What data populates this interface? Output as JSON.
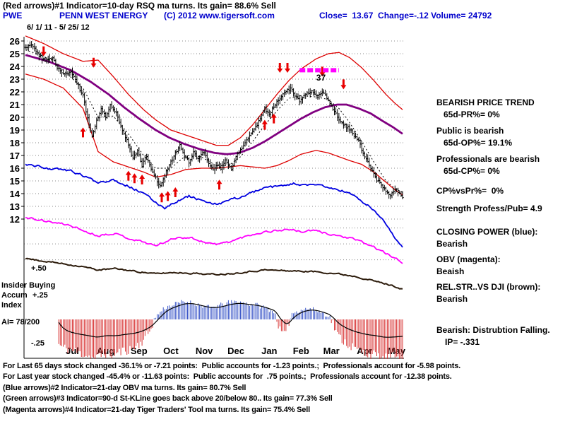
{
  "header": {
    "line1": "(Red arrows)#1 Indicator=10-day RSQ ma turns. Its gain= 88.6% Sell",
    "ticker": "PWE",
    "company": "PENN WEST ENERGY",
    "copyright": "(C) 2012 www.tigersoft.com",
    "quote": "Close=  13.67  Change=-.12 Volume= 24792",
    "date_range": "6/ 1/ 11 - 5/ 25/ 12"
  },
  "left_labels": {
    "plus50": "+.50",
    "insider": "Insider Buying",
    "accum": "Accum",
    "plus25": "+.25",
    "index": "Index",
    "ai": "AI= 78/200",
    "minus25": "-.25"
  },
  "right_panel": {
    "lines": [
      "BEARISH PRICE TREND",
      "65d-PR%= 0%",
      "Public is bearish",
      "65d-OP%= 19.1%",
      "Professionals are bearish",
      "65d-CP%= 0%",
      "CP%vsPr%=  0%",
      "Strength Profess/Pub= 4.9",
      "CLOSING POWER (blue):",
      "Bearish",
      "OBV (magenta):",
      "Beaish",
      "REL.STR..VS DJI (brown):",
      "Bearish",
      "Bearish: Distrubtion Falling.",
      "IP= -.331"
    ]
  },
  "footer": {
    "lines": [
      "For Last 65 days stock changed -36.1% or -7.21 points:  Public accounts for -1.23 points.;  Professionals account for -5.98 points.",
      "For Last year stock changed -45.4% or -11.63 points:  Public accounts for  .75 points.;  Professionals account for -12.38 points.",
      "(Blue arrows)#2 Indicator=21-day OBV ma turns. Its gain= 80.7% Sell",
      "(Green arrows)#3 Indicator=90-d St-KLine goes back above 20/below 80.. Its gain= 77.3% Sell",
      "(Magenta arrows)#4 Indicator=21-day Tiger Traders' Tool ma turns. Its gain= 75.4% Sell"
    ]
  },
  "chart_data": {
    "type": "candlestick",
    "symbol": "PWE",
    "title": "PENN WEST ENERGY 6/1/11 - 5/25/12",
    "close": 13.67,
    "change": -0.12,
    "volume": 24792,
    "days": 250,
    "ylim": [
      12,
      26
    ],
    "yticks": [
      26,
      25,
      24,
      23,
      22,
      21,
      20,
      19,
      18,
      17,
      16,
      15,
      14,
      13,
      12
    ],
    "extra_gridlines": [
      11.3,
      10.05,
      8.8
    ],
    "months": [
      "Jul",
      "Aug",
      "Sep",
      "Oct",
      "Nov",
      "Dec",
      "Jan",
      "Feb",
      "Mar",
      "Apr",
      "May"
    ],
    "month_starts": [
      21,
      43,
      65,
      86,
      108,
      129,
      151,
      172,
      192,
      214,
      235
    ],
    "price_close": [
      [
        0,
        25.4
      ],
      [
        4,
        25.8
      ],
      [
        8,
        25.0
      ],
      [
        13,
        24.4
      ],
      [
        18,
        24.7
      ],
      [
        21,
        23.9
      ],
      [
        26,
        23.3
      ],
      [
        30,
        23.6
      ],
      [
        34,
        22.7
      ],
      [
        38,
        21.7
      ],
      [
        41,
        19.9
      ],
      [
        44,
        18.4
      ],
      [
        47,
        19.7
      ],
      [
        50,
        20.7
      ],
      [
        53,
        20.0
      ],
      [
        56,
        21.0
      ],
      [
        60,
        20.3
      ],
      [
        63,
        19.3
      ],
      [
        65,
        18.7
      ],
      [
        68,
        17.9
      ],
      [
        71,
        16.7
      ],
      [
        74,
        17.4
      ],
      [
        77,
        16.2
      ],
      [
        80,
        17.0
      ],
      [
        83,
        16.0
      ],
      [
        86,
        15.2
      ],
      [
        89,
        14.6
      ],
      [
        92,
        15.4
      ],
      [
        95,
        16.3
      ],
      [
        99,
        17.2
      ],
      [
        102,
        17.8
      ],
      [
        105,
        16.9
      ],
      [
        108,
        16.5
      ],
      [
        111,
        17.2
      ],
      [
        114,
        16.7
      ],
      [
        118,
        17.3
      ],
      [
        121,
        16.4
      ],
      [
        124,
        15.8
      ],
      [
        127,
        16.3
      ],
      [
        129,
        15.9
      ],
      [
        132,
        16.6
      ],
      [
        136,
        16.0
      ],
      [
        139,
        16.9
      ],
      [
        143,
        17.6
      ],
      [
        147,
        18.3
      ],
      [
        151,
        19.0
      ],
      [
        155,
        19.9
      ],
      [
        158,
        20.7
      ],
      [
        161,
        20.2
      ],
      [
        164,
        20.9
      ],
      [
        168,
        21.5
      ],
      [
        171,
        22.0
      ],
      [
        175,
        22.3
      ],
      [
        178,
        21.7
      ],
      [
        181,
        21.3
      ],
      [
        185,
        21.8
      ],
      [
        189,
        22.1
      ],
      [
        192,
        21.6
      ],
      [
        196,
        22.0
      ],
      [
        200,
        21.3
      ],
      [
        203,
        20.6
      ],
      [
        207,
        19.9
      ],
      [
        210,
        19.4
      ],
      [
        214,
        19.1
      ],
      [
        217,
        18.6
      ],
      [
        220,
        18.1
      ],
      [
        223,
        17.2
      ],
      [
        226,
        16.5
      ],
      [
        229,
        15.7
      ],
      [
        232,
        15.1
      ],
      [
        235,
        14.6
      ],
      [
        238,
        14.2
      ],
      [
        241,
        13.9
      ],
      [
        244,
        14.4
      ],
      [
        247,
        14.0
      ],
      [
        249,
        13.7
      ]
    ],
    "upper_band": [
      [
        0,
        26.4
      ],
      [
        12,
        25.8
      ],
      [
        25,
        25.0
      ],
      [
        38,
        24.4
      ],
      [
        48,
        24.5
      ],
      [
        58,
        23.2
      ],
      [
        68,
        21.8
      ],
      [
        78,
        20.6
      ],
      [
        86,
        19.8
      ],
      [
        96,
        19.0
      ],
      [
        106,
        18.6
      ],
      [
        116,
        18.2
      ],
      [
        126,
        17.8
      ],
      [
        134,
        17.8
      ],
      [
        142,
        18.4
      ],
      [
        150,
        19.4
      ],
      [
        158,
        20.6
      ],
      [
        166,
        21.8
      ],
      [
        174,
        22.9
      ],
      [
        182,
        23.8
      ],
      [
        192,
        24.6
      ],
      [
        200,
        25.0
      ],
      [
        207,
        25.1
      ],
      [
        214,
        24.7
      ],
      [
        222,
        23.9
      ],
      [
        230,
        22.9
      ],
      [
        238,
        21.8
      ],
      [
        244,
        21.1
      ],
      [
        249,
        20.6
      ]
    ],
    "lower_band": [
      [
        0,
        23.4
      ],
      [
        12,
        23.0
      ],
      [
        25,
        22.3
      ],
      [
        38,
        20.7
      ],
      [
        48,
        17.3
      ],
      [
        58,
        16.5
      ],
      [
        68,
        16.1
      ],
      [
        78,
        15.7
      ],
      [
        86,
        15.3
      ],
      [
        96,
        15.5
      ],
      [
        106,
        15.9
      ],
      [
        116,
        16.0
      ],
      [
        126,
        16.0
      ],
      [
        134,
        16.1
      ],
      [
        142,
        16.2
      ],
      [
        150,
        16.1
      ],
      [
        158,
        16.0
      ],
      [
        166,
        16.2
      ],
      [
        174,
        16.6
      ],
      [
        182,
        17.1
      ],
      [
        192,
        17.4
      ],
      [
        200,
        17.2
      ],
      [
        207,
        16.9
      ],
      [
        214,
        16.6
      ],
      [
        222,
        16.3
      ],
      [
        230,
        15.7
      ],
      [
        238,
        14.9
      ],
      [
        244,
        14.3
      ],
      [
        249,
        13.9
      ]
    ],
    "mid_band": [
      [
        0,
        24.9
      ],
      [
        15,
        24.4
      ],
      [
        30,
        23.7
      ],
      [
        43,
        22.8
      ],
      [
        55,
        21.8
      ],
      [
        65,
        20.8
      ],
      [
        75,
        19.9
      ],
      [
        86,
        19.0
      ],
      [
        95,
        18.4
      ],
      [
        105,
        17.9
      ],
      [
        115,
        17.5
      ],
      [
        125,
        17.2
      ],
      [
        133,
        17.1
      ],
      [
        141,
        17.2
      ],
      [
        150,
        17.6
      ],
      [
        158,
        18.1
      ],
      [
        166,
        18.7
      ],
      [
        174,
        19.3
      ],
      [
        182,
        19.9
      ],
      [
        190,
        20.4
      ],
      [
        198,
        20.8
      ],
      [
        206,
        21.0
      ],
      [
        212,
        21.0
      ],
      [
        220,
        20.7
      ],
      [
        228,
        20.3
      ],
      [
        236,
        19.7
      ],
      [
        243,
        19.2
      ],
      [
        249,
        18.7
      ]
    ],
    "dotted_ma": [
      [
        0,
        25.3
      ],
      [
        12,
        24.8
      ],
      [
        25,
        23.7
      ],
      [
        38,
        22.3
      ],
      [
        48,
        20.0
      ],
      [
        58,
        20.1
      ],
      [
        68,
        18.7
      ],
      [
        78,
        17.0
      ],
      [
        86,
        16.0
      ],
      [
        96,
        16.0
      ],
      [
        106,
        17.0
      ],
      [
        116,
        16.9
      ],
      [
        126,
        16.2
      ],
      [
        134,
        16.2
      ],
      [
        142,
        16.9
      ],
      [
        150,
        18.1
      ],
      [
        158,
        19.4
      ],
      [
        166,
        20.5
      ],
      [
        174,
        21.5
      ],
      [
        182,
        21.7
      ],
      [
        192,
        21.6
      ],
      [
        200,
        21.4
      ],
      [
        207,
        20.7
      ],
      [
        214,
        19.6
      ],
      [
        222,
        18.1
      ],
      [
        230,
        16.5
      ],
      [
        238,
        15.0
      ],
      [
        244,
        14.4
      ],
      [
        249,
        14.1
      ]
    ],
    "closing_power": [
      [
        0,
        16.3
      ],
      [
        10,
        16.1
      ],
      [
        20,
        15.9
      ],
      [
        30,
        15.8
      ],
      [
        40,
        15.3
      ],
      [
        48,
        14.9
      ],
      [
        58,
        15.1
      ],
      [
        68,
        14.6
      ],
      [
        78,
        14.0
      ],
      [
        86,
        13.3
      ],
      [
        92,
        12.9
      ],
      [
        100,
        13.4
      ],
      [
        108,
        13.8
      ],
      [
        116,
        13.5
      ],
      [
        124,
        13.1
      ],
      [
        130,
        13.3
      ],
      [
        138,
        13.6
      ],
      [
        146,
        13.9
      ],
      [
        154,
        14.3
      ],
      [
        162,
        14.5
      ],
      [
        170,
        14.6
      ],
      [
        178,
        14.8
      ],
      [
        186,
        14.6
      ],
      [
        194,
        14.7
      ],
      [
        202,
        14.4
      ],
      [
        210,
        14.2
      ],
      [
        216,
        13.9
      ],
      [
        222,
        13.4
      ],
      [
        228,
        12.9
      ],
      [
        234,
        12.2
      ],
      [
        240,
        11.3
      ],
      [
        245,
        10.4
      ],
      [
        249,
        9.8
      ]
    ],
    "obv": [
      [
        0,
        12.1
      ],
      [
        10,
        11.9
      ],
      [
        20,
        11.7
      ],
      [
        30,
        11.5
      ],
      [
        40,
        11.0
      ],
      [
        48,
        10.7
      ],
      [
        58,
        10.9
      ],
      [
        68,
        10.5
      ],
      [
        78,
        10.2
      ],
      [
        86,
        9.9
      ],
      [
        94,
        10.3
      ],
      [
        102,
        10.6
      ],
      [
        110,
        10.5
      ],
      [
        118,
        10.2
      ],
      [
        126,
        10.0
      ],
      [
        134,
        10.2
      ],
      [
        142,
        10.5
      ],
      [
        150,
        10.8
      ],
      [
        158,
        11.0
      ],
      [
        166,
        11.1
      ],
      [
        174,
        11.2
      ],
      [
        182,
        11.0
      ],
      [
        190,
        11.1
      ],
      [
        198,
        10.9
      ],
      [
        206,
        10.7
      ],
      [
        214,
        10.5
      ],
      [
        222,
        10.2
      ],
      [
        230,
        9.8
      ],
      [
        238,
        9.3
      ],
      [
        244,
        8.9
      ],
      [
        249,
        8.6
      ]
    ],
    "rel_strength": [
      [
        0,
        8.9
      ],
      [
        12,
        8.7
      ],
      [
        24,
        8.5
      ],
      [
        36,
        8.3
      ],
      [
        48,
        8.0
      ],
      [
        60,
        8.1
      ],
      [
        72,
        7.9
      ],
      [
        86,
        7.7
      ],
      [
        98,
        7.8
      ],
      [
        110,
        7.75
      ],
      [
        122,
        7.65
      ],
      [
        134,
        7.7
      ],
      [
        146,
        7.85
      ],
      [
        158,
        8.0
      ],
      [
        170,
        7.95
      ],
      [
        182,
        7.9
      ],
      [
        194,
        7.85
      ],
      [
        206,
        7.7
      ],
      [
        218,
        7.5
      ],
      [
        228,
        7.2
      ],
      [
        238,
        6.9
      ],
      [
        244,
        6.7
      ],
      [
        249,
        6.5
      ]
    ],
    "ai_index": [
      [
        0,
        -0.3
      ],
      [
        8,
        -0.5
      ],
      [
        16,
        -0.4
      ],
      [
        24,
        -0.7
      ],
      [
        32,
        -0.8
      ],
      [
        40,
        -0.9
      ],
      [
        46,
        -1.0
      ],
      [
        52,
        -0.85
      ],
      [
        58,
        -0.9
      ],
      [
        64,
        -0.8
      ],
      [
        70,
        -0.75
      ],
      [
        76,
        -0.6
      ],
      [
        82,
        -0.3
      ],
      [
        88,
        0.3
      ],
      [
        92,
        0.6
      ],
      [
        98,
        0.75
      ],
      [
        104,
        0.9
      ],
      [
        110,
        0.85
      ],
      [
        116,
        0.7
      ],
      [
        122,
        0.6
      ],
      [
        128,
        0.7
      ],
      [
        134,
        0.85
      ],
      [
        140,
        0.9
      ],
      [
        146,
        0.8
      ],
      [
        152,
        0.75
      ],
      [
        158,
        0.6
      ],
      [
        164,
        0.4
      ],
      [
        168,
        -0.3
      ],
      [
        172,
        -0.4
      ],
      [
        176,
        0.3
      ],
      [
        182,
        0.5
      ],
      [
        188,
        0.55
      ],
      [
        194,
        0.4
      ],
      [
        200,
        0.2
      ],
      [
        206,
        -0.4
      ],
      [
        212,
        -0.6
      ],
      [
        218,
        -0.75
      ],
      [
        224,
        -0.85
      ],
      [
        230,
        -0.9
      ],
      [
        236,
        -1.0
      ],
      [
        242,
        -0.95
      ],
      [
        249,
        -0.9
      ]
    ],
    "buy_arrows": [
      [
        38,
        19.2
      ],
      [
        68,
        15.8
      ],
      [
        72,
        15.6
      ],
      [
        77,
        15.5
      ],
      [
        90,
        14.1
      ],
      [
        94,
        14.2
      ],
      [
        99,
        14.5
      ],
      [
        128,
        15.1
      ],
      [
        158,
        19.8
      ],
      [
        164,
        20.3
      ]
    ],
    "sell_arrows": [
      [
        12,
        24.8
      ],
      [
        45,
        23.9
      ],
      [
        168,
        23.5
      ],
      [
        173,
        23.5
      ],
      [
        196,
        23.2
      ],
      [
        210,
        22.2
      ]
    ],
    "trade_band": {
      "from_day": 181,
      "to_day": 207,
      "price": 23.7
    },
    "label37": {
      "day": 192,
      "price": 22.9,
      "text": "37"
    },
    "colors": {
      "header_blue": "#0000cc",
      "band_red": "#dd0000",
      "ma_purple": "#800080",
      "cp_blue": "#0000e0",
      "obv_magenta": "#ff00ff",
      "relstr_brown": "#2b1a0a",
      "hist_pos": "#3a56c8",
      "hist_neg": "#d83535",
      "arrow_red": "#e80000",
      "band_magenta": "#ff00ff"
    }
  }
}
